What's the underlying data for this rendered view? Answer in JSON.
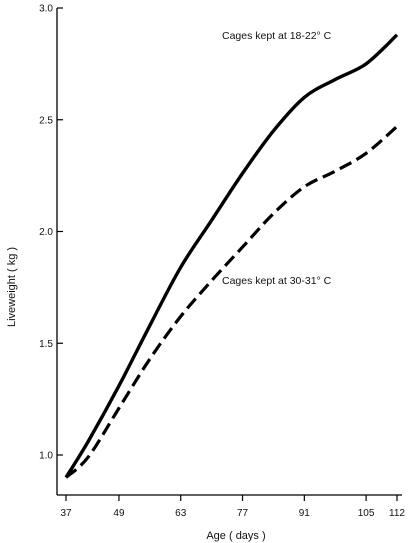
{
  "chart_data": {
    "type": "line",
    "title": "",
    "xlabel": "Age ( days )",
    "ylabel": "Liveweight ( kg )",
    "xlim": [
      37,
      112
    ],
    "ylim": [
      0.8,
      3.0
    ],
    "xticks": [
      37,
      49,
      63,
      77,
      91,
      105,
      112
    ],
    "yticks": [
      1.0,
      1.5,
      2.0,
      2.5,
      3.0
    ],
    "xtick_labels": [
      "37",
      "49",
      "63",
      "77",
      "91",
      "105",
      "112"
    ],
    "ytick_labels": [
      "1.0",
      "1.5",
      "2.0",
      "2.5",
      "3.0"
    ],
    "grid": false,
    "series": [
      {
        "name": "Cages kept at 18-22° C",
        "style": "solid",
        "color": "#000000",
        "x": [
          37,
          42,
          49,
          56,
          63,
          70,
          77,
          84,
          91,
          98,
          105,
          112
        ],
        "y": [
          0.9,
          1.06,
          1.31,
          1.58,
          1.84,
          2.05,
          2.26,
          2.45,
          2.6,
          2.68,
          2.75,
          2.88
        ]
      },
      {
        "name": "Cages kept at 30-31° C",
        "style": "dashed",
        "color": "#000000",
        "x": [
          37,
          42,
          49,
          56,
          63,
          70,
          77,
          84,
          91,
          98,
          105,
          112
        ],
        "y": [
          0.9,
          0.99,
          1.21,
          1.43,
          1.62,
          1.78,
          1.93,
          2.08,
          2.2,
          2.27,
          2.35,
          2.47
        ]
      }
    ]
  }
}
